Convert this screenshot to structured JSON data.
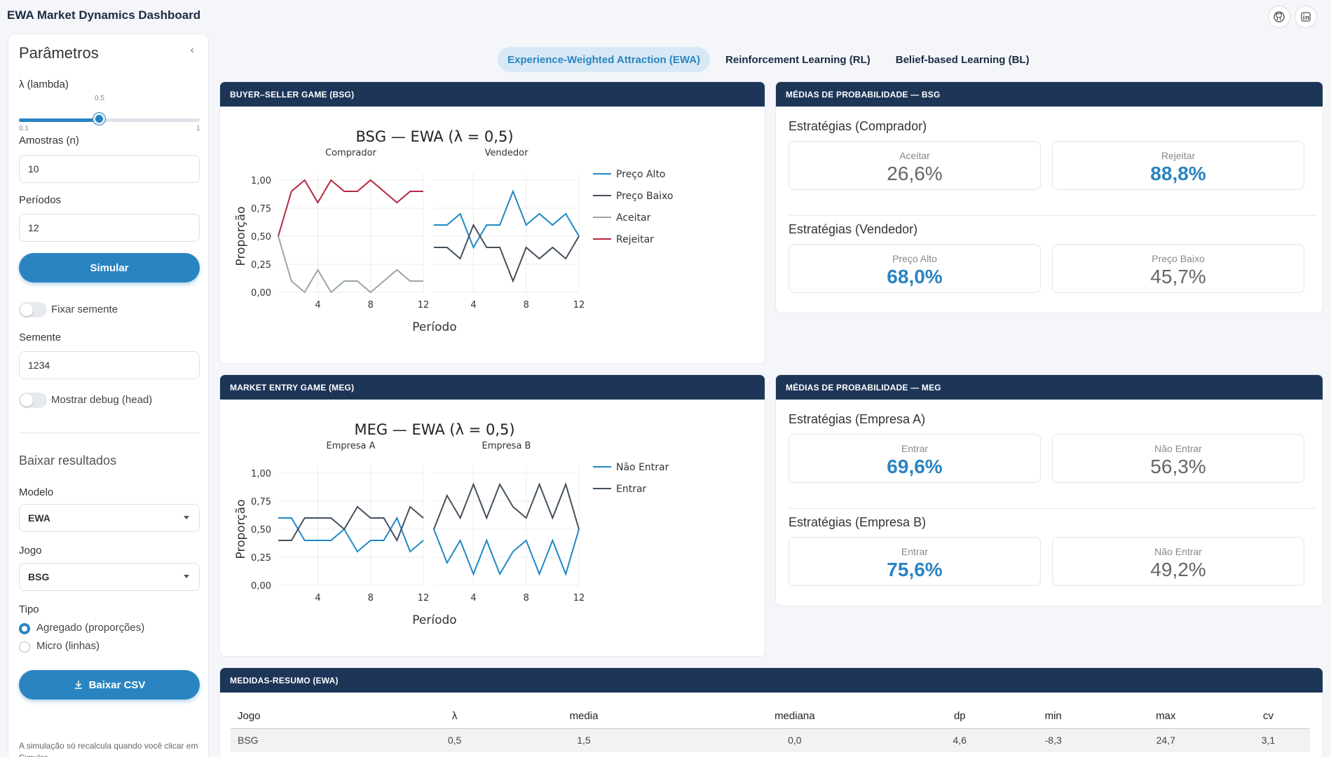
{
  "app": {
    "title": "EWA Market Dynamics Dashboard"
  },
  "icons": {
    "github": "github-icon",
    "linkedin": "linkedin-icon"
  },
  "colors": {
    "accent": "#2a84c1",
    "header": "#1d3557",
    "red": "#b5283f",
    "dark": "#44505c",
    "grey": "#9aa5a8"
  },
  "sidebar": {
    "title": "Parâmetros",
    "lambda_label": "λ (lambda)",
    "lambda_value": "0.5",
    "lambda_min": "0.1",
    "lambda_max": "1",
    "lambda_fraction": 0.444,
    "samples_label": "Amostras (n)",
    "samples_value": "10",
    "periods_label": "Períodos",
    "periods_value": "12",
    "simulate_label": "Simular",
    "fix_seed_label": "Fixar semente",
    "seed_label": "Semente",
    "seed_value": "1234",
    "debug_label": "Mostrar debug (head)",
    "download_title": "Baixar resultados",
    "model_label": "Modelo",
    "model_value": "EWA",
    "game_label": "Jogo",
    "game_value": "BSG",
    "type_label": "Tipo",
    "type_options": [
      "Agregado (proporções)",
      "Micro (linhas)"
    ],
    "download_button": "Baixar CSV",
    "note": "A simulação só recalcula quando você clicar em Simular."
  },
  "tabs": [
    "Experience-Weighted Attraction (EWA)",
    "Reinforcement Learning (RL)",
    "Belief-based Learning (BL)"
  ],
  "bsg_card": {
    "header": "BUYER–SELLER GAME (BSG)"
  },
  "meg_card": {
    "header": "MARKET ENTRY GAME (MEG)"
  },
  "bsg_stats": {
    "header": "MÉDIAS DE PROBABILIDADE — BSG",
    "group1": "Estratégias (Comprador)",
    "g1_a_label": "Aceitar",
    "g1_a_value": "26,6%",
    "g1_b_label": "Rejeitar",
    "g1_b_value": "88,8%",
    "group2": "Estratégias (Vendedor)",
    "g2_a_label": "Preço Alto",
    "g2_a_value": "68,0%",
    "g2_b_label": "Preço Baixo",
    "g2_b_value": "45,7%"
  },
  "meg_stats": {
    "header": "MÉDIAS DE PROBABILIDADE — MEG",
    "group1": "Estratégias (Empresa A)",
    "g1_a_label": "Entrar",
    "g1_a_value": "69,6%",
    "g1_b_label": "Não Entrar",
    "g1_b_value": "56,3%",
    "group2": "Estratégias (Empresa B)",
    "g2_a_label": "Entrar",
    "g2_a_value": "75,6%",
    "g2_b_label": "Não Entrar",
    "g2_b_value": "49,2%"
  },
  "summary": {
    "header": "MEDIDAS-RESUMO (EWA)",
    "columns": [
      "Jogo",
      "λ",
      "media",
      "mediana",
      "dp",
      "min",
      "max",
      "cv"
    ],
    "rows": [
      [
        "BSG",
        "0,5",
        "1,5",
        "0,0",
        "4,6",
        "-8,3",
        "24,7",
        "3,1"
      ]
    ]
  },
  "chart_data": [
    {
      "type": "line",
      "title": "BSG — EWA (λ = 0,5)",
      "xlabel": "Período",
      "ylabel": "Proporção",
      "ylim": [
        0,
        1
      ],
      "yticks": [
        "0,00",
        "0,25",
        "0,50",
        "0,75",
        "1,00"
      ],
      "xticks": [
        "4",
        "8",
        "12"
      ],
      "panels": [
        {
          "name": "Comprador",
          "x": [
            1,
            2,
            3,
            4,
            5,
            6,
            7,
            8,
            9,
            10,
            11,
            12
          ],
          "series": [
            {
              "name": "Rejeitar",
              "color": "#b5283f",
              "values": [
                0.5,
                0.9,
                1.0,
                0.8,
                1.0,
                0.9,
                0.9,
                1.0,
                0.9,
                0.8,
                0.9,
                0.9
              ]
            },
            {
              "name": "Aceitar",
              "color": "#9aa5a8",
              "values": [
                0.5,
                0.1,
                0.0,
                0.2,
                0.0,
                0.1,
                0.1,
                0.0,
                0.1,
                0.2,
                0.1,
                0.1
              ]
            }
          ]
        },
        {
          "name": "Vendedor",
          "x": [
            1,
            2,
            3,
            4,
            5,
            6,
            7,
            8,
            9,
            10,
            11,
            12
          ],
          "series": [
            {
              "name": "Preço Alto",
              "color": "#1e88c7",
              "values": [
                0.6,
                0.6,
                0.7,
                0.4,
                0.6,
                0.6,
                0.9,
                0.6,
                0.7,
                0.6,
                0.7,
                0.5
              ]
            },
            {
              "name": "Preço Baixo",
              "color": "#44505c",
              "values": [
                0.4,
                0.4,
                0.3,
                0.6,
                0.4,
                0.4,
                0.1,
                0.4,
                0.3,
                0.4,
                0.3,
                0.5
              ]
            }
          ]
        }
      ],
      "legend": [
        "Preço Alto",
        "Preço Baixo",
        "Aceitar",
        "Rejeitar"
      ]
    },
    {
      "type": "line",
      "title": "MEG — EWA (λ = 0,5)",
      "xlabel": "Período",
      "ylabel": "Proporção",
      "ylim": [
        0,
        1
      ],
      "yticks": [
        "0,00",
        "0,25",
        "0,50",
        "0,75",
        "1,00"
      ],
      "xticks": [
        "4",
        "8",
        "12"
      ],
      "panels": [
        {
          "name": "Empresa A",
          "x": [
            1,
            2,
            3,
            4,
            5,
            6,
            7,
            8,
            9,
            10,
            11,
            12
          ],
          "series": [
            {
              "name": "Não Entrar",
              "color": "#1e88c7",
              "values": [
                0.6,
                0.6,
                0.4,
                0.4,
                0.4,
                0.5,
                0.3,
                0.4,
                0.4,
                0.6,
                0.3,
                0.4
              ]
            },
            {
              "name": "Entrar",
              "color": "#44505c",
              "values": [
                0.4,
                0.4,
                0.6,
                0.6,
                0.6,
                0.5,
                0.7,
                0.6,
                0.6,
                0.4,
                0.7,
                0.6
              ]
            }
          ]
        },
        {
          "name": "Empresa B",
          "x": [
            1,
            2,
            3,
            4,
            5,
            6,
            7,
            8,
            9,
            10,
            11,
            12
          ],
          "series": [
            {
              "name": "Não Entrar",
              "color": "#1e88c7",
              "values": [
                0.5,
                0.2,
                0.4,
                0.1,
                0.4,
                0.1,
                0.3,
                0.4,
                0.1,
                0.4,
                0.1,
                0.5
              ]
            },
            {
              "name": "Entrar",
              "color": "#44505c",
              "values": [
                0.5,
                0.8,
                0.6,
                0.9,
                0.6,
                0.9,
                0.7,
                0.6,
                0.9,
                0.6,
                0.9,
                0.5
              ]
            }
          ]
        }
      ],
      "legend": [
        "Não Entrar",
        "Entrar"
      ]
    }
  ]
}
